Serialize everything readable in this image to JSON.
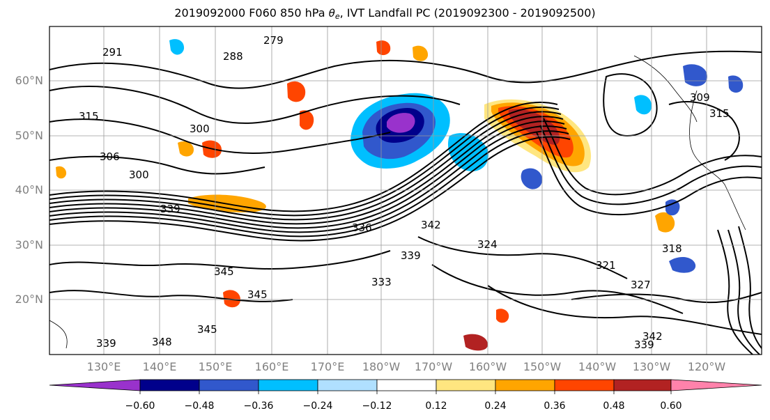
{
  "title": {
    "prefix": "2019092000 F060 850 hPa ",
    "symbol": "θ",
    "symbol_sub": "e",
    "suffix": ", IVT Landfall PC (2019092300 - 2019092500)"
  },
  "map": {
    "lat_labels": [
      "60°N",
      "50°N",
      "40°N",
      "30°N",
      "20°N"
    ],
    "lon_labels": [
      "130°E",
      "140°E",
      "150°E",
      "160°E",
      "170°E",
      "180°W",
      "170°W",
      "160°W",
      "150°W",
      "140°W",
      "130°W",
      "120°W"
    ],
    "contour_labels": [
      "291",
      "288",
      "279",
      "300",
      "306",
      "315",
      "300",
      "339",
      "336",
      "342",
      "345",
      "333",
      "339",
      "345",
      "348",
      "339",
      "318",
      "321",
      "324",
      "327",
      "342",
      "339",
      "309",
      "315"
    ],
    "colors": {
      "land_contour": "#000000",
      "grid": "#9a9a9a",
      "label_gray": "#808080"
    }
  },
  "colorbar": {
    "ticks": [
      "−0.60",
      "−0.48",
      "−0.36",
      "−0.24",
      "−0.12",
      "0.12",
      "0.24",
      "0.36",
      "0.48",
      "0.60"
    ],
    "colors": [
      "#9932CC",
      "#00008B",
      "#3158CC",
      "#00BFFF",
      "#B0E0FF",
      "#FFFFFF",
      "#FFE680",
      "#FFA500",
      "#FF4500",
      "#B22222",
      "#FF82AB"
    ]
  }
}
